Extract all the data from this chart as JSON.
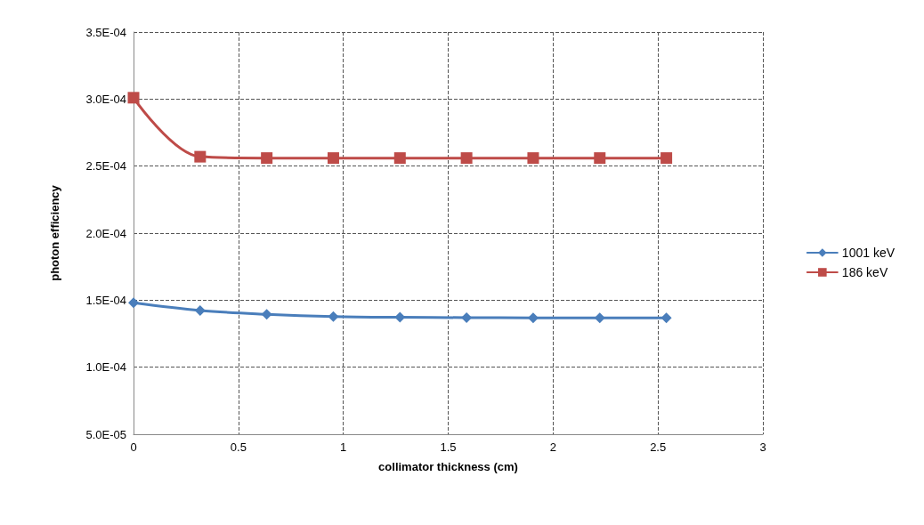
{
  "chart_data": {
    "type": "line",
    "xlabel": "collimator thickness (cm)",
    "ylabel": "photon efficiency",
    "x": [
      0,
      0.3175,
      0.635,
      0.9525,
      1.27,
      1.5875,
      1.905,
      2.2225,
      2.54
    ],
    "series": [
      {
        "name": "1001 keV",
        "color": "#4a7ebb",
        "marker": "diamond",
        "values": [
          0.000148,
          0.0001423,
          0.0001395,
          0.0001378,
          0.0001372,
          0.000137,
          0.0001368,
          0.0001367,
          0.0001367
        ]
      },
      {
        "name": "186 keV",
        "color": "#be4b48",
        "marker": "square",
        "values": [
          0.000301,
          0.000257,
          0.000256,
          0.000256,
          0.000256,
          0.000256,
          0.000256,
          0.000256,
          0.000256
        ]
      }
    ],
    "xlim": [
      0,
      3
    ],
    "xticks": [
      0,
      0.5,
      1,
      1.5,
      2,
      2.5,
      3
    ],
    "ylim": [
      5e-05,
      0.00035
    ],
    "yticks": [
      {
        "value": 5e-05,
        "label": "5.0E-05"
      },
      {
        "value": 0.0001,
        "label": "1.0E-04"
      },
      {
        "value": 0.00015,
        "label": "1.5E-04"
      },
      {
        "value": 0.0002,
        "label": "2.0E-04"
      },
      {
        "value": 0.00025,
        "label": "2.5E-04"
      },
      {
        "value": 0.0003,
        "label": "3.0E-04"
      },
      {
        "value": 0.00035,
        "label": "3.5E-04"
      }
    ],
    "grid": true,
    "legend": "right",
    "line_style": "solid"
  }
}
